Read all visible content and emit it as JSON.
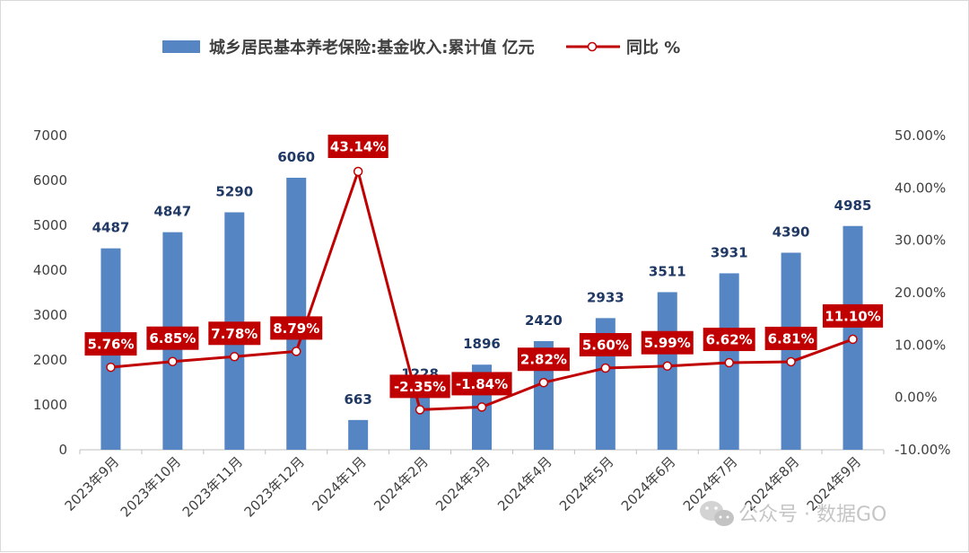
{
  "legend": {
    "bar_label": "城乡居民基本养老保险:基金收入:累计值 亿元",
    "line_label": "同比 %"
  },
  "watermark": {
    "text": "公众号 · 数据GO",
    "icon": "wechat-icon"
  },
  "colors": {
    "bar": "#5585c3",
    "line": "#c00000",
    "label_box": "#c00000",
    "bar_value_text": "#1f3864"
  },
  "chart_data": {
    "type": "bar",
    "categories": [
      "2023年9月",
      "2023年10月",
      "2023年11月",
      "2023年12月",
      "2024年1月",
      "2024年2月",
      "2024年3月",
      "2024年4月",
      "2024年5月",
      "2024年6月",
      "2024年7月",
      "2024年8月",
      "2024年9月"
    ],
    "series": [
      {
        "name": "城乡居民基本养老保险:基金收入:累计值 亿元",
        "type": "bar",
        "axis": "left",
        "values": [
          4487,
          4847,
          5290,
          6060,
          663,
          1228,
          1896,
          2420,
          2933,
          3511,
          3931,
          4390,
          4985
        ],
        "labels": [
          "4487",
          "4847",
          "5290",
          "6060",
          "663",
          "1228",
          "1896",
          "2420",
          "2933",
          "3511",
          "3931",
          "4390",
          "4985"
        ]
      },
      {
        "name": "同比 %",
        "type": "line",
        "axis": "right",
        "values": [
          5.76,
          6.85,
          7.78,
          8.79,
          43.14,
          -2.35,
          -1.84,
          2.82,
          5.6,
          5.99,
          6.62,
          6.81,
          11.1
        ],
        "labels": [
          "5.76%",
          "6.85%",
          "7.78%",
          "8.79%",
          "43.14%",
          "-2.35%",
          "-1.84%",
          "2.82%",
          "5.60%",
          "5.99%",
          "6.62%",
          "6.81%",
          "11.10%"
        ]
      }
    ],
    "y_left": {
      "min": 0,
      "max": 7000,
      "ticks": [
        "0",
        "1000",
        "2000",
        "3000",
        "4000",
        "5000",
        "6000",
        "7000"
      ]
    },
    "y_right": {
      "min": -10,
      "max": 50,
      "ticks": [
        "-10.00%",
        "0.00%",
        "10.00%",
        "20.00%",
        "30.00%",
        "40.00%",
        "50.00%"
      ]
    },
    "grid": false,
    "legend_position": "top"
  }
}
